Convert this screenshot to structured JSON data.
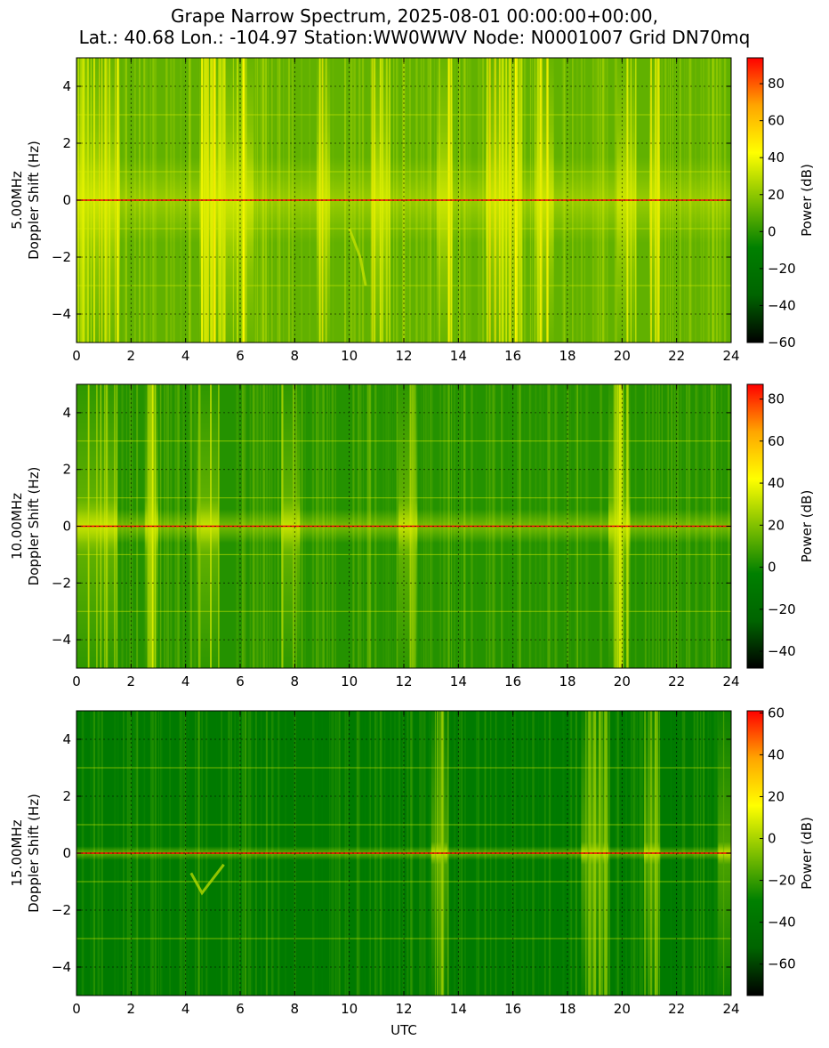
{
  "figure": {
    "title_line_1": "Grape Narrow Spectrum, 2025-08-01 00:00:00+00:00,",
    "title_line_2": "Lat.: 40.68 Lon.: -104.97 Station:WW0WWV Node: N0001007 Grid DN70mq"
  },
  "colors": {
    "colormap": [
      "#000000",
      "#006400",
      "#008000",
      "#7fc000",
      "#ffff00",
      "#ffa500",
      "#ff0000"
    ],
    "carrier_line": "#ff0000",
    "background": "#ffffff"
  },
  "chart_data": [
    {
      "type": "heatmap",
      "name": "5.00MHz",
      "ylabel_line_1": "5.00MHz",
      "ylabel_line_2": "Doppler Shift (Hz)",
      "xlabel": "",
      "xlim": [
        0,
        24
      ],
      "ylim": [
        -5,
        5
      ],
      "xticks": [
        0,
        2,
        4,
        6,
        8,
        10,
        12,
        14,
        16,
        18,
        20,
        22,
        24
      ],
      "yticks": [
        -4,
        -2,
        0,
        2,
        4
      ],
      "grid": true,
      "colorbar": {
        "label": "Power (dB)",
        "range": [
          -60,
          94
        ],
        "ticks": [
          -60,
          -40,
          -20,
          0,
          20,
          40,
          60,
          80
        ]
      },
      "carrier_doppler_hz": 0,
      "mean_level": 0.58,
      "hline_doppler_hz": [
        -3,
        -1,
        1,
        3
      ],
      "bright_hour_bands": [
        [
          0,
          1.6
        ],
        [
          4.5,
          6.5
        ],
        [
          8.8,
          9.3
        ],
        [
          10.8,
          11.5
        ],
        [
          13.2,
          13.8
        ],
        [
          15.0,
          16.3
        ],
        [
          16.8,
          17.5
        ],
        [
          19.8,
          20.5
        ],
        [
          21.0,
          21.4
        ]
      ],
      "wide_glow_hz": 2.5,
      "trace_points": [
        {
          "hour": 10.0,
          "hz": -1.0
        },
        {
          "hour": 10.4,
          "hz": -2.0
        },
        {
          "hour": 10.6,
          "hz": -3.0
        }
      ]
    },
    {
      "type": "heatmap",
      "name": "10.00MHz",
      "ylabel_line_1": "10.00MHz",
      "ylabel_line_2": "Doppler Shift (Hz)",
      "xlabel": "",
      "xlim": [
        0,
        24
      ],
      "ylim": [
        -5,
        5
      ],
      "xticks": [
        0,
        2,
        4,
        6,
        8,
        10,
        12,
        14,
        16,
        18,
        20,
        22,
        24
      ],
      "yticks": [
        -4,
        -2,
        0,
        2,
        4
      ],
      "grid": true,
      "colorbar": {
        "label": "Power (dB)",
        "range": [
          -48,
          87
        ],
        "ticks": [
          -40,
          -20,
          0,
          20,
          40,
          60,
          80
        ]
      },
      "carrier_doppler_hz": 0,
      "mean_level": 0.5,
      "hline_doppler_hz": [
        -3,
        -1,
        1,
        3
      ],
      "bright_hour_bands": [
        [
          0,
          1.5
        ],
        [
          2.5,
          3.0
        ],
        [
          4.4,
          5.2
        ],
        [
          7.5,
          8.2
        ],
        [
          11.8,
          12.5
        ],
        [
          19.5,
          20.3
        ]
      ],
      "wide_glow_hz": 1.0,
      "trace_points": []
    },
    {
      "type": "heatmap",
      "name": "15.00MHz",
      "ylabel_line_1": "15.00MHz",
      "ylabel_line_2": "Doppler Shift (Hz)",
      "xlabel": "UTC",
      "xlim": [
        0,
        24
      ],
      "ylim": [
        -5,
        5
      ],
      "xticks": [
        0,
        2,
        4,
        6,
        8,
        10,
        12,
        14,
        16,
        18,
        20,
        22,
        24
      ],
      "yticks": [
        -4,
        -2,
        0,
        2,
        4
      ],
      "grid": true,
      "colorbar": {
        "label": "Power (dB)",
        "range": [
          -75,
          61
        ],
        "ticks": [
          -60,
          -40,
          -20,
          0,
          20,
          40,
          60
        ]
      },
      "carrier_doppler_hz": 0,
      "mean_level": 0.42,
      "hline_doppler_hz": [
        -3,
        -1,
        1,
        3
      ],
      "bright_hour_bands": [
        [
          13.0,
          13.6
        ],
        [
          18.5,
          19.5
        ],
        [
          20.8,
          21.4
        ],
        [
          23.5,
          24
        ]
      ],
      "wide_glow_hz": 0.4,
      "trace_points": [
        {
          "hour": 4.2,
          "hz": -0.7
        },
        {
          "hour": 4.6,
          "hz": -1.4
        },
        {
          "hour": 5.0,
          "hz": -0.9
        },
        {
          "hour": 5.4,
          "hz": -0.4
        }
      ]
    }
  ]
}
